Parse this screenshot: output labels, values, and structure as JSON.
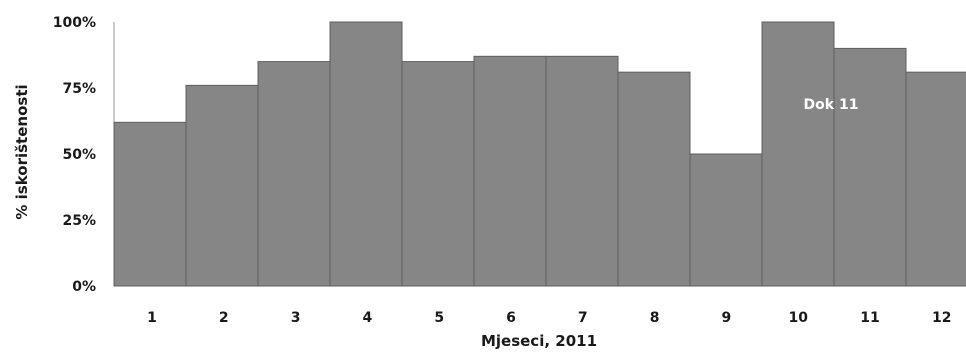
{
  "chart_data": {
    "type": "bar",
    "categories": [
      "1",
      "2",
      "3",
      "4",
      "5",
      "6",
      "7",
      "8",
      "9",
      "10",
      "11",
      "12"
    ],
    "values": [
      62,
      76,
      85,
      100,
      85,
      87,
      87,
      81,
      50,
      100,
      90,
      81
    ],
    "xlabel": "Mjeseci, 2011",
    "ylabel": "% iskorištenosti",
    "y_ticks": [
      "0%",
      "25%",
      "50%",
      "75%",
      "100%"
    ],
    "ylim": [
      0,
      100
    ],
    "annotation": "Dok 11",
    "grid": false,
    "colors": {
      "bar": "#868686",
      "bar_edge": "#5e5e5e",
      "axis": "#9a9a9a"
    }
  }
}
